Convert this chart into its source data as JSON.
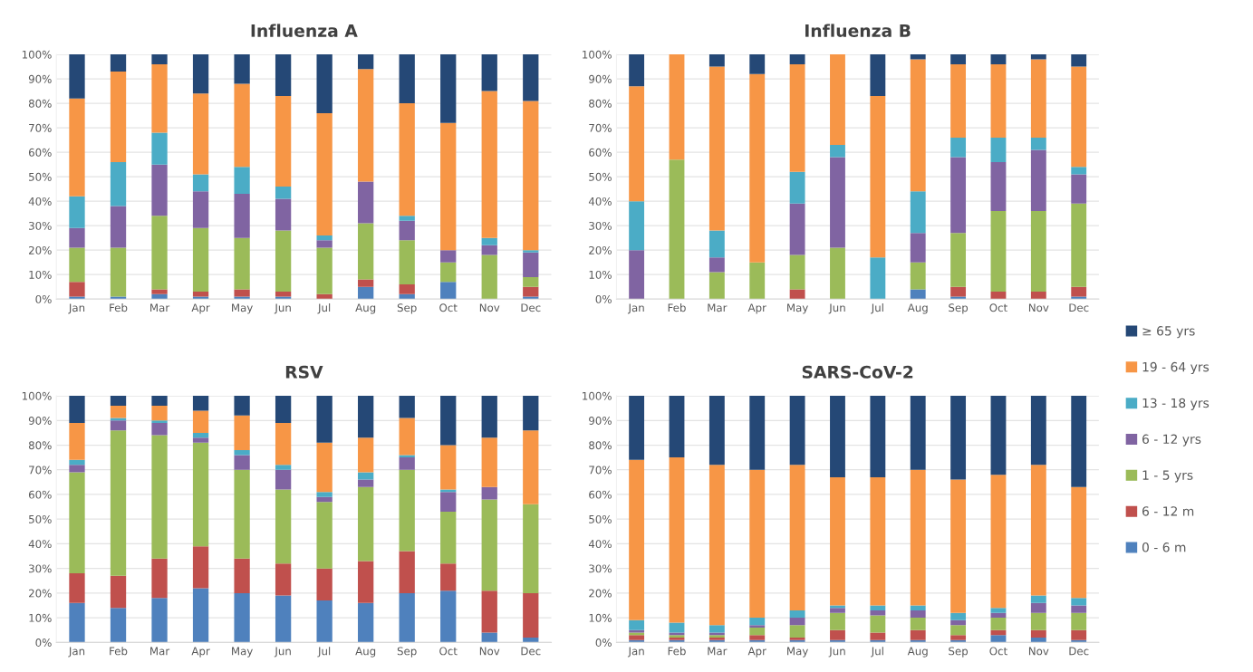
{
  "chart_data": [
    {
      "type": "bar",
      "stacked": true,
      "title": "Influenza A",
      "legend": "right",
      "categories": [
        "Jan",
        "Feb",
        "Mar",
        "Apr",
        "May",
        "Jun",
        "Jul",
        "Aug",
        "Sep",
        "Oct",
        "Nov",
        "Dec"
      ],
      "ylim": [
        0,
        100
      ],
      "yticks": [
        {
          "value": 0,
          "label": "0%"
        },
        {
          "value": 10,
          "label": "10%"
        },
        {
          "value": 20,
          "label": "20%"
        },
        {
          "value": 30,
          "label": "30%"
        },
        {
          "value": 40,
          "label": "40%"
        },
        {
          "value": 50,
          "label": "50%"
        },
        {
          "value": 60,
          "label": "60%"
        },
        {
          "value": 70,
          "label": "70%"
        },
        {
          "value": 80,
          "label": "80%"
        },
        {
          "value": 90,
          "label": "90%"
        },
        {
          "value": 100,
          "label": "100%"
        }
      ],
      "grid": "y",
      "series": [
        {
          "name": "0 - 6 m",
          "color": "#4f81bd",
          "values": [
            1,
            1,
            2,
            1,
            1,
            1,
            0,
            5,
            2,
            7,
            0,
            1
          ]
        },
        {
          "name": "6 - 12 m",
          "color": "#c0504d",
          "values": [
            6,
            0,
            2,
            2,
            3,
            2,
            2,
            3,
            4,
            0,
            0,
            4
          ]
        },
        {
          "name": "1 - 5 yrs",
          "color": "#9bbb59",
          "values": [
            14,
            20,
            30,
            26,
            21,
            25,
            19,
            23,
            18,
            8,
            18,
            4
          ]
        },
        {
          "name": "6 - 12 yrs",
          "color": "#8064a2",
          "values": [
            8,
            17,
            21,
            15,
            18,
            13,
            3,
            17,
            8,
            5,
            4,
            10
          ]
        },
        {
          "name": "13 - 18 yrs",
          "color": "#4bacc6",
          "values": [
            13,
            18,
            13,
            7,
            11,
            5,
            2,
            0,
            2,
            0,
            3,
            1
          ]
        },
        {
          "name": "19 - 64 yrs",
          "color": "#f79646",
          "values": [
            40,
            37,
            28,
            33,
            34,
            37,
            50,
            46,
            46,
            52,
            60,
            61
          ]
        },
        {
          "name": "≥ 65 yrs",
          "color": "#254876",
          "values": [
            18,
            7,
            4,
            16,
            12,
            17,
            24,
            6,
            20,
            28,
            15,
            19
          ]
        }
      ]
    },
    {
      "type": "bar",
      "stacked": true,
      "title": "Influenza B",
      "categories": [
        "Jan",
        "Feb",
        "Mar",
        "Apr",
        "May",
        "Jun",
        "Jul",
        "Aug",
        "Sep",
        "Oct",
        "Nov",
        "Dec"
      ],
      "ylim": [
        0,
        100
      ],
      "yticks": [
        {
          "value": 0,
          "label": "0%"
        },
        {
          "value": 10,
          "label": "10%"
        },
        {
          "value": 20,
          "label": "20%"
        },
        {
          "value": 30,
          "label": "30%"
        },
        {
          "value": 40,
          "label": "40%"
        },
        {
          "value": 50,
          "label": "50%"
        },
        {
          "value": 60,
          "label": "60%"
        },
        {
          "value": 70,
          "label": "70%"
        },
        {
          "value": 80,
          "label": "80%"
        },
        {
          "value": 90,
          "label": "90%"
        },
        {
          "value": 100,
          "label": "100%"
        }
      ],
      "grid": "y",
      "series": [
        {
          "color": "#4f81bd",
          "values": [
            0,
            0,
            0,
            0,
            0,
            0,
            0,
            4,
            1,
            0,
            0,
            1
          ]
        },
        {
          "color": "#c0504d",
          "values": [
            0,
            0,
            0,
            0,
            4,
            0,
            0,
            0,
            4,
            3,
            3,
            4
          ]
        },
        {
          "color": "#9bbb59",
          "values": [
            0,
            57,
            11,
            15,
            14,
            21,
            0,
            11,
            22,
            33,
            33,
            34
          ]
        },
        {
          "color": "#8064a2",
          "values": [
            20,
            0,
            6,
            0,
            21,
            37,
            0,
            12,
            31,
            20,
            25,
            12
          ]
        },
        {
          "color": "#4bacc6",
          "values": [
            20,
            0,
            11,
            0,
            13,
            5,
            17,
            17,
            8,
            10,
            5,
            3
          ]
        },
        {
          "color": "#f79646",
          "values": [
            47,
            43,
            67,
            77,
            44,
            37,
            66,
            54,
            30,
            30,
            32,
            41
          ]
        },
        {
          "color": "#254876",
          "values": [
            13,
            0,
            5,
            8,
            4,
            0,
            17,
            2,
            4,
            4,
            2,
            5
          ]
        }
      ]
    },
    {
      "type": "bar",
      "stacked": true,
      "title": "RSV",
      "categories": [
        "Jan",
        "Feb",
        "Mar",
        "Apr",
        "May",
        "Jun",
        "Jul",
        "Aug",
        "Sep",
        "Oct",
        "Nov",
        "Dec"
      ],
      "ylim": [
        0,
        100
      ],
      "yticks": [
        {
          "value": 0,
          "label": "0%"
        },
        {
          "value": 10,
          "label": "10%"
        },
        {
          "value": 20,
          "label": "20%"
        },
        {
          "value": 30,
          "label": "30%"
        },
        {
          "value": 40,
          "label": "40%"
        },
        {
          "value": 50,
          "label": "50%"
        },
        {
          "value": 60,
          "label": "60%"
        },
        {
          "value": 70,
          "label": "70%"
        },
        {
          "value": 80,
          "label": "80%"
        },
        {
          "value": 90,
          "label": "90%"
        },
        {
          "value": 100,
          "label": "100%"
        }
      ],
      "grid": "y",
      "series": [
        {
          "color": "#4f81bd",
          "values": [
            16,
            14,
            18,
            22,
            20,
            19,
            17,
            16,
            20,
            21,
            4,
            2
          ]
        },
        {
          "color": "#c0504d",
          "values": [
            12,
            13,
            16,
            17,
            14,
            13,
            13,
            17,
            17,
            11,
            17,
            18
          ]
        },
        {
          "color": "#9bbb59",
          "values": [
            41,
            59,
            50,
            42,
            36,
            30,
            27,
            30,
            33,
            21,
            37,
            36
          ]
        },
        {
          "color": "#8064a2",
          "values": [
            3,
            4,
            5,
            2,
            6,
            8,
            2,
            3,
            5,
            8,
            5,
            0
          ]
        },
        {
          "color": "#4bacc6",
          "values": [
            2,
            1,
            1,
            2,
            2,
            2,
            2,
            3,
            1,
            1,
            0,
            0
          ]
        },
        {
          "color": "#f79646",
          "values": [
            15,
            5,
            6,
            9,
            14,
            17,
            20,
            14,
            15,
            18,
            20,
            30
          ]
        },
        {
          "color": "#254876",
          "values": [
            11,
            4,
            4,
            6,
            8,
            11,
            19,
            17,
            9,
            20,
            17,
            14
          ]
        }
      ]
    },
    {
      "type": "bar",
      "stacked": true,
      "title": "SARS-CoV-2",
      "categories": [
        "Jan",
        "Feb",
        "Mar",
        "Apr",
        "May",
        "Jun",
        "Jul",
        "Aug",
        "Sep",
        "Oct",
        "Nov",
        "Dec"
      ],
      "ylim": [
        0,
        100
      ],
      "yticks": [
        {
          "value": 0,
          "label": "0%"
        },
        {
          "value": 10,
          "label": "10%"
        },
        {
          "value": 20,
          "label": "20%"
        },
        {
          "value": 30,
          "label": "30%"
        },
        {
          "value": 40,
          "label": "40%"
        },
        {
          "value": 50,
          "label": "50%"
        },
        {
          "value": 60,
          "label": "60%"
        },
        {
          "value": 70,
          "label": "70%"
        },
        {
          "value": 80,
          "label": "80%"
        },
        {
          "value": 90,
          "label": "90%"
        },
        {
          "value": 100,
          "label": "100%"
        }
      ],
      "grid": "y",
      "series": [
        {
          "color": "#4f81bd",
          "values": [
            1,
            1,
            1,
            1,
            1,
            1,
            1,
            1,
            1,
            3,
            2,
            1
          ]
        },
        {
          "color": "#c0504d",
          "values": [
            2,
            1,
            1,
            2,
            1,
            4,
            3,
            4,
            2,
            2,
            3,
            4
          ]
        },
        {
          "color": "#9bbb59",
          "values": [
            1,
            1,
            1,
            3,
            5,
            7,
            7,
            5,
            4,
            5,
            7,
            7
          ]
        },
        {
          "color": "#8064a2",
          "values": [
            1,
            1,
            1,
            1,
            3,
            2,
            2,
            3,
            2,
            2,
            4,
            3
          ]
        },
        {
          "color": "#4bacc6",
          "values": [
            4,
            4,
            3,
            3,
            3,
            1,
            2,
            2,
            3,
            2,
            3,
            3
          ]
        },
        {
          "color": "#f79646",
          "values": [
            65,
            67,
            65,
            60,
            59,
            52,
            52,
            55,
            54,
            54,
            53,
            45
          ]
        },
        {
          "color": "#254876",
          "values": [
            26,
            25,
            28,
            30,
            28,
            33,
            33,
            30,
            34,
            32,
            28,
            37
          ]
        }
      ]
    }
  ]
}
